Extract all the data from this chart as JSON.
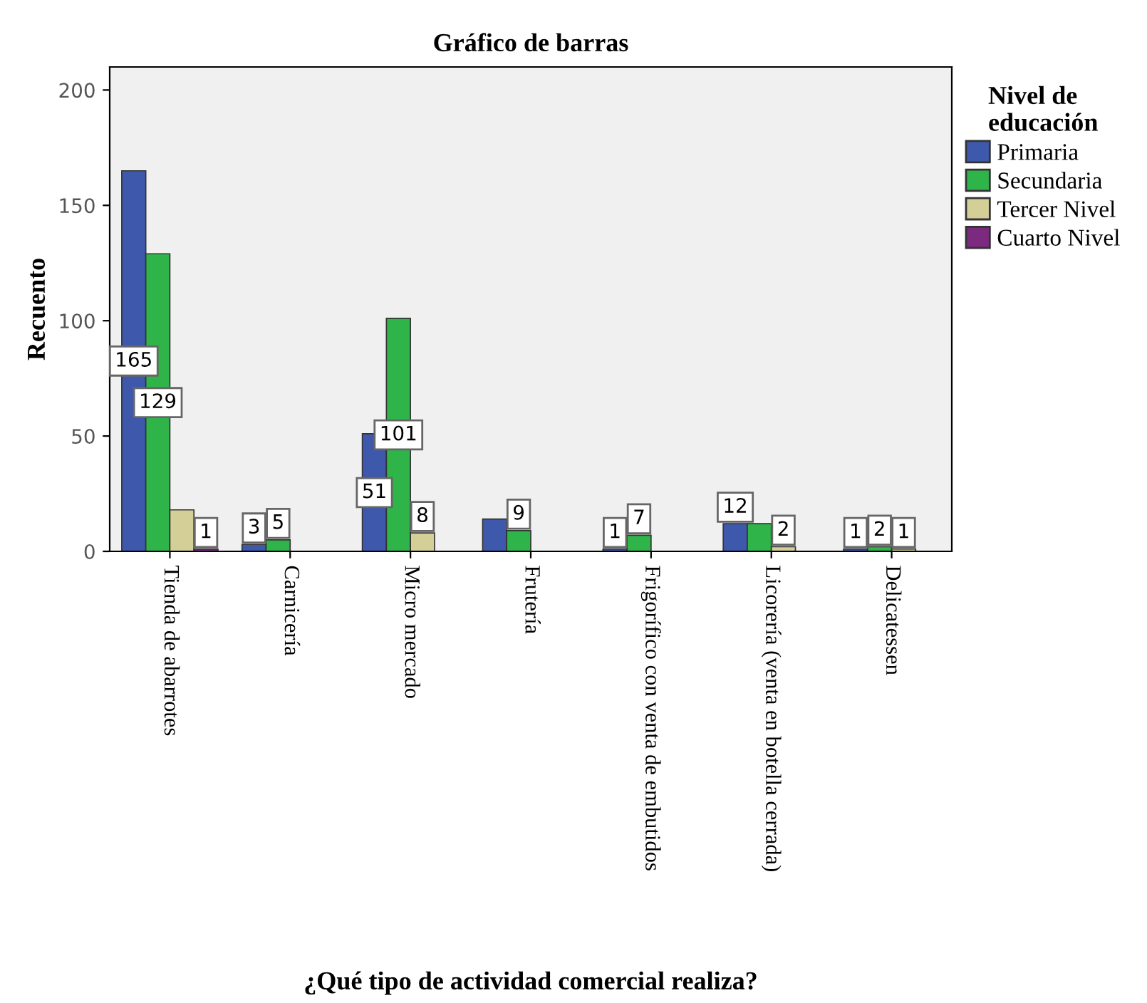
{
  "chart_data": {
    "type": "bar",
    "title": "Gráfico de barras",
    "xlabel": "¿Qué tipo de actividad comercial realiza?",
    "ylabel": "Recuento",
    "legend_title": "Nivel de\neducación",
    "legend": "right",
    "grid": false,
    "categories": [
      "Tienda de abarrotes",
      "Carnicería",
      "Micro mercado",
      "Frutería",
      "Frigorífico con venta de embutidos",
      "Licorería (venta en botella cerrada)",
      "Delicatessen"
    ],
    "ylim": [
      0,
      210
    ],
    "yticks": [
      0,
      50,
      100,
      150,
      200
    ],
    "series": [
      {
        "name": "Primaria",
        "color": "#3e58ac",
        "values": [
          165,
          3,
          51,
          14,
          1,
          12,
          1
        ],
        "value_labels": [
          "165",
          "3",
          "51",
          null,
          "1",
          "12",
          "1"
        ]
      },
      {
        "name": "Secundaria",
        "color": "#2fb44a",
        "values": [
          129,
          5,
          101,
          9,
          7,
          12,
          2
        ],
        "value_labels": [
          "129",
          "5",
          "101",
          "9",
          "7",
          null,
          "2"
        ]
      },
      {
        "name": "Tercer Nivel",
        "color": "#d4cf97",
        "values": [
          18,
          null,
          8,
          null,
          null,
          2,
          1
        ],
        "value_labels": [
          null,
          null,
          "8",
          null,
          null,
          "2",
          "1"
        ]
      },
      {
        "name": "Cuarto Nivel",
        "color": "#7b2a7f",
        "values": [
          1,
          null,
          null,
          null,
          null,
          null,
          null
        ],
        "value_labels": [
          "1",
          null,
          null,
          null,
          null,
          null,
          null
        ]
      }
    ]
  }
}
